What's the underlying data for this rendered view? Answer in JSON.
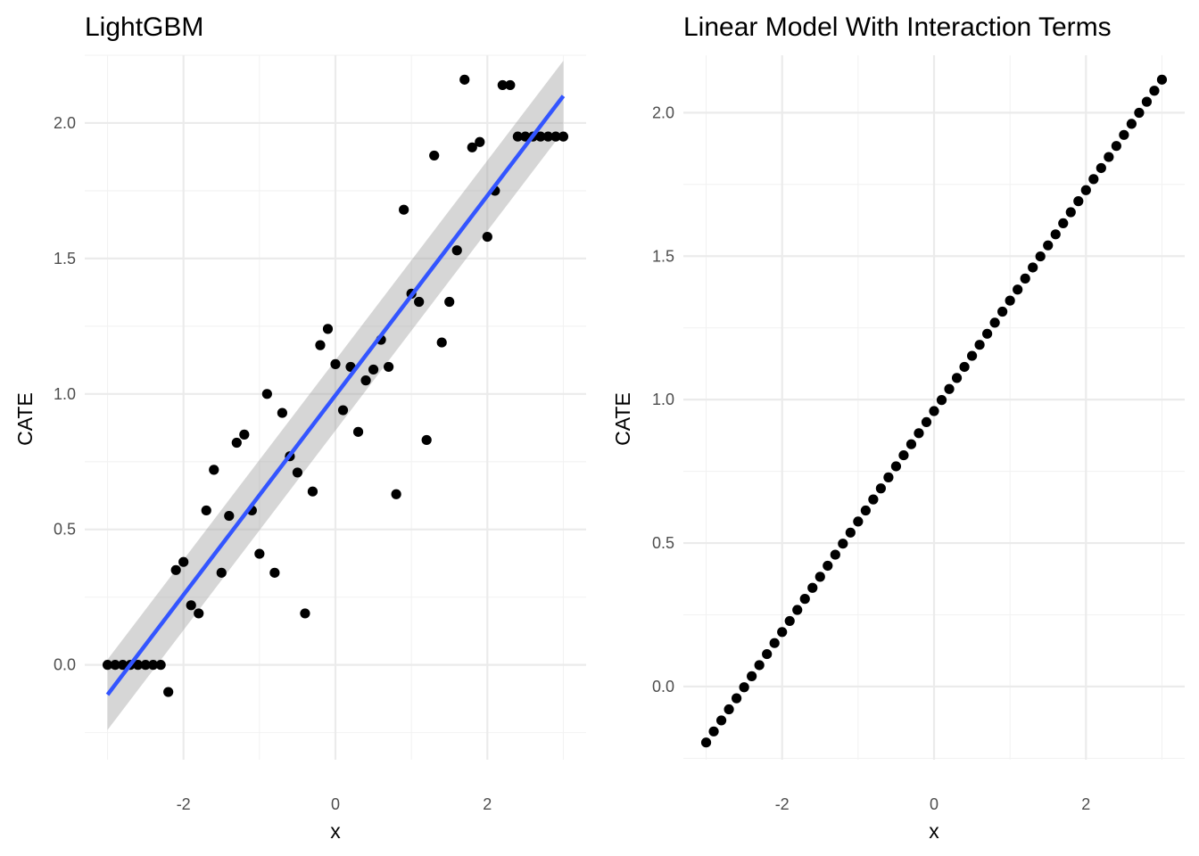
{
  "chart_data": [
    {
      "type": "scatter",
      "title": "LightGBM",
      "xlabel": "x",
      "ylabel": "CATE",
      "xlim": [
        -3.3,
        3.3
      ],
      "ylim": [
        -0.35,
        2.25
      ],
      "x_ticks": [
        -2,
        0,
        2
      ],
      "x_tick_labels": [
        "-2",
        "0",
        "2"
      ],
      "y_ticks": [
        0.0,
        0.5,
        1.0,
        1.5,
        2.0
      ],
      "y_tick_labels": [
        "0.0",
        "0.5",
        "1.0",
        "1.5",
        "2.0"
      ],
      "grid": true,
      "points": {
        "x": [
          -3.0,
          -2.9,
          -2.8,
          -2.7,
          -2.6,
          -2.5,
          -2.4,
          -2.3,
          -2.2,
          -2.1,
          -2.0,
          -1.9,
          -1.8,
          -1.7,
          -1.6,
          -1.5,
          -1.4,
          -1.3,
          -1.2,
          -1.1,
          -1.0,
          -0.9,
          -0.8,
          -0.7,
          -0.6,
          -0.5,
          -0.4,
          -0.3,
          -0.2,
          -0.1,
          0.0,
          0.1,
          0.2,
          0.3,
          0.4,
          0.5,
          0.6,
          0.7,
          0.8,
          0.9,
          1.0,
          1.1,
          1.2,
          1.3,
          1.4,
          1.5,
          1.6,
          1.7,
          1.8,
          1.9,
          2.0,
          2.1,
          2.2,
          2.3,
          2.4,
          2.5,
          2.6,
          2.7,
          2.8,
          2.9,
          3.0
        ],
        "y": [
          0.0,
          0.0,
          0.0,
          0.0,
          0.0,
          0.0,
          0.0,
          0.0,
          -0.1,
          0.35,
          0.38,
          0.22,
          0.19,
          0.57,
          0.72,
          0.34,
          0.55,
          0.82,
          0.85,
          0.57,
          0.41,
          1.0,
          0.34,
          0.93,
          0.77,
          0.71,
          0.19,
          0.64,
          1.18,
          1.24,
          1.11,
          0.94,
          1.1,
          0.86,
          1.05,
          1.09,
          1.2,
          1.1,
          0.63,
          1.68,
          1.37,
          1.34,
          0.83,
          1.88,
          1.19,
          1.34,
          1.53,
          2.16,
          1.91,
          1.93,
          1.58,
          1.75,
          2.14,
          2.14,
          1.95,
          1.95,
          1.95,
          1.95,
          1.95,
          1.95,
          1.95
        ]
      },
      "fit_line": {
        "name": "linear fit",
        "color": "#3355ff",
        "x": [
          -3.0,
          3.0
        ],
        "y": [
          -0.11,
          2.1
        ],
        "band_lower": [
          -0.24,
          1.97
        ],
        "band_upper": [
          0.02,
          2.23
        ],
        "band_color": "#999999"
      }
    },
    {
      "type": "scatter",
      "title": "Linear Model With Interaction Terms",
      "xlabel": "x",
      "ylabel": "CATE",
      "xlim": [
        -3.3,
        3.3
      ],
      "ylim": [
        -0.255,
        2.2
      ],
      "x_ticks": [
        -2,
        0,
        2
      ],
      "x_tick_labels": [
        "-2",
        "0",
        "2"
      ],
      "y_ticks": [
        0.0,
        0.5,
        1.0,
        1.5,
        2.0
      ],
      "y_tick_labels": [
        "0.0",
        "0.5",
        "1.0",
        "1.5",
        "2.0"
      ],
      "grid": true,
      "points": {
        "x_start": -3.0,
        "x_step": 0.1,
        "count": 61,
        "y_intercept": 0.96,
        "y_slope": 0.385
      }
    }
  ]
}
